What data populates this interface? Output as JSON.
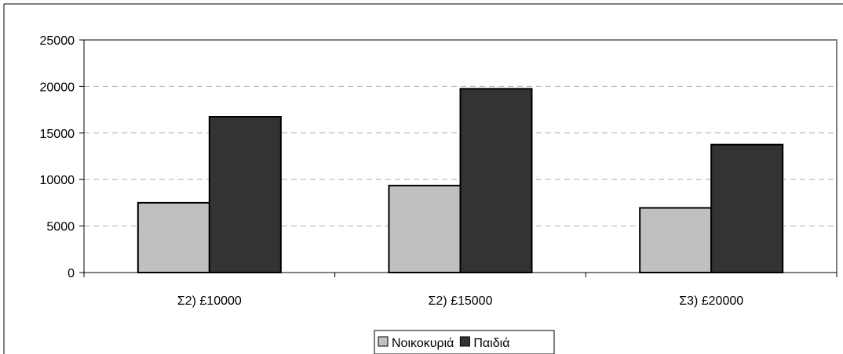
{
  "chart_data": {
    "type": "bar",
    "categories": [
      "Σ2) £10000",
      "Σ2) £15000",
      "Σ3) £20000"
    ],
    "series": [
      {
        "name": "Νοικοκυριά",
        "values": [
          7500,
          9350,
          6950
        ],
        "color": "#c0c0c0"
      },
      {
        "name": "Παιδιά",
        "values": [
          16750,
          19750,
          13750
        ],
        "color": "#333333"
      }
    ],
    "ylim": [
      0,
      25000
    ],
    "yticks": [
      0,
      5000,
      10000,
      15000,
      20000,
      25000
    ],
    "ytick_labels": [
      "0",
      "5000",
      "10000",
      "15000",
      "20000",
      "25000"
    ],
    "grid": "horizontal dashed",
    "legend_position": "bottom-center"
  }
}
